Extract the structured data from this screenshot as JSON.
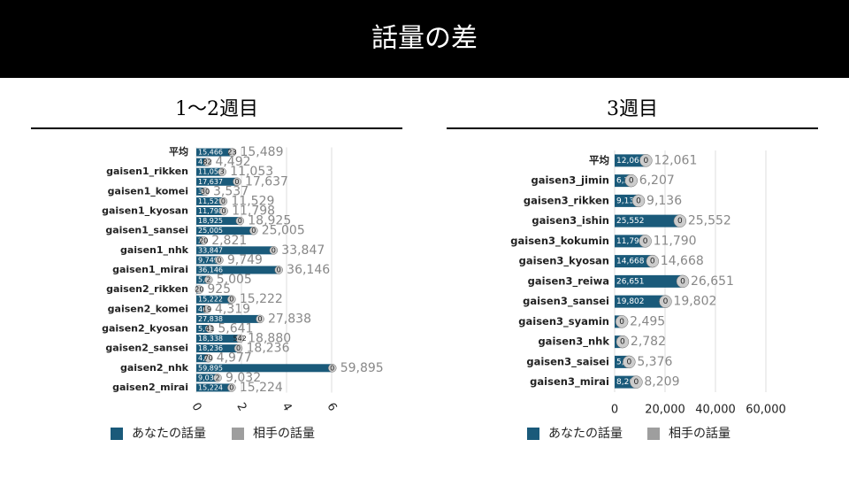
{
  "slide_title": "話量の差",
  "chart_data": [
    {
      "type": "bar",
      "orientation": "horizontal",
      "stacked": true,
      "grid": true,
      "tick_rotation": 60,
      "subtitle": "1〜2週目",
      "categories": [
        "平均",
        null,
        "gaisen1_rikken",
        null,
        "gaisen1_komei",
        null,
        "gaisen1_kyosan",
        null,
        "gaisen1_sansei",
        null,
        "gaisen1_nhk",
        null,
        "gaisen1_mirai",
        null,
        "gaisen2_rikken",
        null,
        "gaisen2_komei",
        null,
        "gaisen2_kyosan",
        null,
        "gaisen2_sansei",
        null,
        "gaisen2_nhk",
        null,
        "gaisen2_mirai"
      ],
      "series": [
        {
          "name": "あなたの話量",
          "color": "#1a5a7a",
          "values": [
            15466,
            4410,
            11050,
            17637,
            3507,
            11529,
            11798,
            18925,
            25005,
            2801,
            33847,
            9749,
            36146,
            5003,
            905,
            15222,
            4300,
            27838,
            5600,
            18338,
            18236,
            4907,
            59895,
            9030,
            15224
          ],
          "value_labels": [
            "15,466",
            "4,410",
            "11,050",
            "17,637",
            "3,507",
            "11,529",
            "11,798",
            "18,925",
            "25,005",
            "2,801",
            "33,847",
            "9,749",
            "36,146",
            "5,003",
            "905",
            "15,222",
            "4,300",
            "27,838",
            "5,600",
            "18,338",
            "18,236",
            "4,907",
            "59,895",
            "9,030",
            "15,224"
          ]
        },
        {
          "name": "相手の話量",
          "color": "#9e9e9e",
          "values": [
            23,
            82,
            3,
            0,
            30,
            0,
            0,
            0,
            0,
            20,
            0,
            0,
            0,
            2,
            20,
            0,
            19,
            0,
            41,
            542,
            0,
            70,
            0,
            2,
            0
          ]
        }
      ],
      "total_labels": [
        "15,489",
        "4,492",
        "11,053",
        "17,637",
        "3,537",
        "11,529",
        "11,798",
        "18,925",
        "25,005",
        "2,821",
        "33,847",
        "9,749",
        "36,146",
        "5,005",
        "925",
        "15,222",
        "4,319",
        "27,838",
        "5,641",
        "18,880",
        "18,236",
        "4,977",
        "59,895",
        "9,032",
        "15,224"
      ],
      "xlim": [
        0,
        60000
      ],
      "xticks": [
        0,
        {
          "value": 20000,
          "label": "2"
        },
        {
          "value": 40000,
          "label": "4"
        },
        {
          "value": 60000,
          "label": "6"
        }
      ]
    },
    {
      "type": "bar",
      "orientation": "horizontal",
      "stacked": true,
      "grid": true,
      "tick_rotation": 0,
      "subtitle": "3週目",
      "categories": [
        "平均",
        "gaisen3_jimin",
        "gaisen3_rikken",
        "gaisen3_ishin",
        "gaisen3_kokumin",
        "gaisen3_kyosan",
        "gaisen3_reiwa",
        "gaisen3_sansei",
        "gaisen3_syamin",
        "gaisen3_nhk",
        "gaisen3_saisei",
        "gaisen3_mirai"
      ],
      "series": [
        {
          "name": "あなたの話量",
          "color": "#1a5a7a",
          "values": [
            12061,
            6207,
            9136,
            25552,
            11790,
            14668,
            26651,
            19802,
            2495,
            2782,
            5376,
            8209
          ],
          "value_labels": [
            "12,061",
            "6,207",
            "9,136",
            "25,552",
            "11,790",
            "14,668",
            "26,651",
            "19,802",
            "2,495",
            "2,782",
            "5,376",
            "8,209"
          ]
        },
        {
          "name": "相手の話量",
          "color": "#9e9e9e",
          "values": [
            0,
            0,
            0,
            0,
            0,
            0,
            0,
            0,
            0,
            0,
            0,
            0
          ]
        }
      ],
      "total_labels": [
        "12,061",
        "6,207",
        "9,136",
        "25,552",
        "11,790",
        "14,668",
        "26,651",
        "19,802",
        "2,495",
        "2,782",
        "5,376",
        "8,209"
      ],
      "xlim": [
        0,
        80000
      ],
      "xticks": [
        0,
        {
          "value": 20000,
          "label": "20,000"
        },
        {
          "value": 40000,
          "label": "40,000"
        },
        {
          "value": 60000,
          "label": "60,000"
        }
      ]
    }
  ]
}
